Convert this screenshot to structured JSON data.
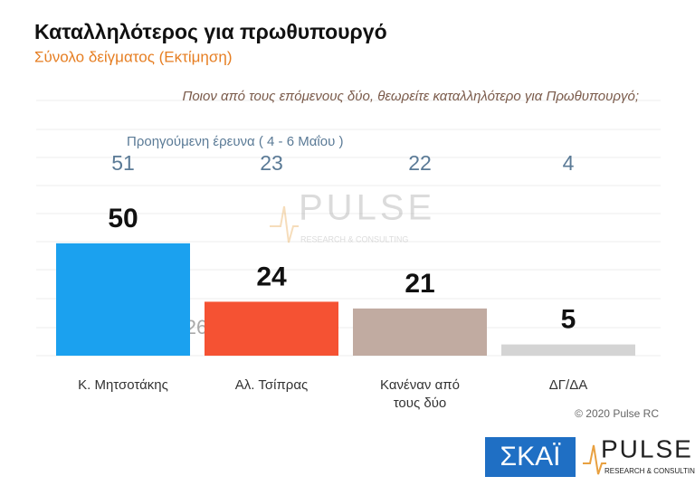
{
  "chart_data": {
    "type": "bar",
    "title": "Καταλληλότερος για πρωθυπουργό",
    "subtitle": "Σύνολο δείγματος   (Εκτίμηση)",
    "question": "Ποιον από τους επόμενους δύο, θεωρείτε καταλληλότερο για Πρωθυπουργό;",
    "previous_label": "Προηγούμενη έρευνα   ( 4 - 6 Μαΐου )",
    "previous_values": [
      51,
      23,
      22,
      4
    ],
    "categories": [
      "Κ. Μητσοτάκης",
      "Αλ. Τσίπρας",
      "Κανέναν από τους δύο",
      "ΔΓ/ΔΑ"
    ],
    "values": [
      50,
      24,
      21,
      5
    ],
    "colors": [
      "#1ba1ef",
      "#f55233",
      "#c1aba1",
      "#d4d4d4"
    ],
    "ylim": [
      0,
      60
    ],
    "annotation": "< 26 >",
    "copyright": "© 2020 Pulse RC",
    "logos": {
      "skai": "ΣΚΑΪ",
      "pulse": "PULSE",
      "pulse_sub": "RESEARCH & CONSULTING"
    }
  }
}
